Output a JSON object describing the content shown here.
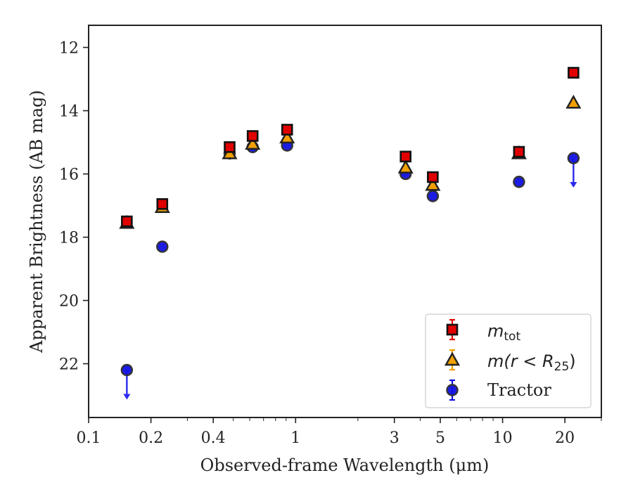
{
  "chart_data": {
    "type": "scatter",
    "xlabel": "Observed-frame Wavelength (μm)",
    "ylabel": "Apparent Brightness (AB mag)",
    "x_scale": "log",
    "xlim": [
      0.1,
      30
    ],
    "ylim": [
      23.7,
      11.3
    ],
    "y_inverted": true,
    "x_ticks": [
      {
        "value": 0.1,
        "label": "0.1"
      },
      {
        "value": 0.2,
        "label": "0.2"
      },
      {
        "value": 0.4,
        "label": "0.4"
      },
      {
        "value": 1,
        "label": "1"
      },
      {
        "value": 3,
        "label": "3"
      },
      {
        "value": 5,
        "label": "5"
      },
      {
        "value": 10,
        "label": "10"
      },
      {
        "value": 20,
        "label": "20"
      }
    ],
    "y_ticks": [
      {
        "value": 12,
        "label": "12"
      },
      {
        "value": 14,
        "label": "14"
      },
      {
        "value": 16,
        "label": "16"
      },
      {
        "value": 18,
        "label": "18"
      },
      {
        "value": 20,
        "label": "20"
      },
      {
        "value": 22,
        "label": "22"
      }
    ],
    "grid": false,
    "legend_position": "lower right",
    "series": [
      {
        "name": "m_tot",
        "marker": "square",
        "color": "#e00000",
        "points": [
          {
            "x": 0.153,
            "y": 17.5,
            "err": 0.15
          },
          {
            "x": 0.227,
            "y": 16.95,
            "err": 0.15
          },
          {
            "x": 0.48,
            "y": 15.15,
            "err": 0.15
          },
          {
            "x": 0.62,
            "y": 14.8,
            "err": 0.15
          },
          {
            "x": 0.91,
            "y": 14.6,
            "err": 0.15
          },
          {
            "x": 3.4,
            "y": 15.45,
            "err": 0.15
          },
          {
            "x": 4.6,
            "y": 16.1,
            "err": 0.15
          },
          {
            "x": 12.0,
            "y": 15.3,
            "err": 0.15
          },
          {
            "x": 22.0,
            "y": 12.8,
            "err": 0.1
          }
        ]
      },
      {
        "name": "m(r < R25)",
        "marker": "triangle",
        "color": "#f0a000",
        "points": [
          {
            "x": 0.153,
            "y": 17.55
          },
          {
            "x": 0.227,
            "y": 17.05
          },
          {
            "x": 0.48,
            "y": 15.35
          },
          {
            "x": 0.62,
            "y": 15.05
          },
          {
            "x": 0.91,
            "y": 14.85
          },
          {
            "x": 3.4,
            "y": 15.8
          },
          {
            "x": 4.6,
            "y": 16.35
          },
          {
            "x": 12.0,
            "y": 15.35
          },
          {
            "x": 22.0,
            "y": 13.75
          }
        ]
      },
      {
        "name": "Tractor",
        "marker": "circle",
        "color": "#1010e0",
        "points": [
          {
            "x": 0.153,
            "y": 22.2,
            "upper_limit": true
          },
          {
            "x": 0.227,
            "y": 18.3
          },
          {
            "x": 0.48,
            "y": 15.35
          },
          {
            "x": 0.62,
            "y": 15.15
          },
          {
            "x": 0.91,
            "y": 15.1
          },
          {
            "x": 3.4,
            "y": 16.0
          },
          {
            "x": 4.6,
            "y": 16.7
          },
          {
            "x": 12.0,
            "y": 16.25
          },
          {
            "x": 22.0,
            "y": 15.5,
            "upper_limit": true
          }
        ]
      }
    ]
  },
  "legend": {
    "mtot_main": "m",
    "mtot_sub": "tot",
    "mr_prefix": "m(r < R",
    "mr_sub": "25",
    "mr_suffix": ")",
    "tractor": "Tractor"
  }
}
